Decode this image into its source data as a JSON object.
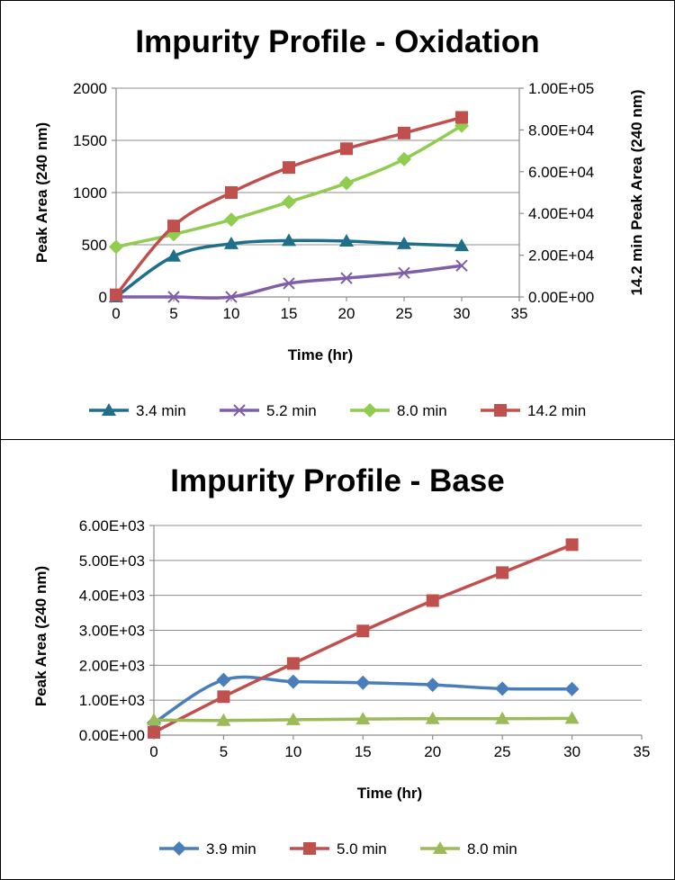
{
  "chart_data": [
    {
      "type": "line",
      "title": "Impurity Profile - Oxidation",
      "xlabel": "Time (hr)",
      "ylabel": "Peak Area (240 nm)",
      "y2label": "14.2 min Peak Area (240 nm)",
      "xlim": [
        0,
        35
      ],
      "ylim": [
        0,
        2000
      ],
      "y2lim": [
        0,
        100000
      ],
      "xticks": [
        "0",
        "5",
        "10",
        "15",
        "20",
        "25",
        "30",
        "35"
      ],
      "yticks": [
        "0",
        "500",
        "1000",
        "1500",
        "2000"
      ],
      "y2ticks": [
        "0.00E+00",
        "2.00E+04",
        "4.00E+04",
        "6.00E+04",
        "8.00E+04",
        "1.00E+05"
      ],
      "grid": true,
      "legend": "bottom",
      "series": [
        {
          "name": "3.4 min",
          "color": "#1f6f8b",
          "marker": "triangle",
          "axis": "left",
          "x": [
            0,
            5,
            10,
            15,
            20,
            25,
            30
          ],
          "y": [
            0,
            390,
            510,
            540,
            535,
            510,
            490
          ]
        },
        {
          "name": "5.2 min",
          "color": "#7f5fa8",
          "marker": "x",
          "axis": "left",
          "x": [
            0,
            5,
            10,
            15,
            20,
            25,
            30
          ],
          "y": [
            0,
            0,
            0,
            130,
            180,
            230,
            300
          ]
        },
        {
          "name": "8.0 min",
          "color": "#8fcc4f",
          "marker": "diamond",
          "axis": "left",
          "x": [
            0,
            5,
            10,
            15,
            20,
            25,
            30
          ],
          "y": [
            480,
            600,
            740,
            910,
            1090,
            1320,
            1640
          ]
        },
        {
          "name": "14.2 min",
          "color": "#c0504d",
          "marker": "square",
          "axis": "right",
          "x": [
            0,
            5,
            10,
            15,
            20,
            25,
            30
          ],
          "y": [
            1000,
            34000,
            50000,
            62000,
            71000,
            78500,
            86000
          ]
        }
      ]
    },
    {
      "type": "line",
      "title": "Impurity Profile - Base",
      "xlabel": "Time (hr)",
      "ylabel": "Peak Area (240 nm)",
      "xlim": [
        0,
        35
      ],
      "ylim": [
        0,
        6000
      ],
      "xticks": [
        "0",
        "5",
        "10",
        "15",
        "20",
        "25",
        "30",
        "35"
      ],
      "yticks": [
        "0.00E+00",
        "1.00E+03",
        "2.00E+03",
        "3.00E+03",
        "4.00E+03",
        "5.00E+03",
        "6.00E+03"
      ],
      "grid": true,
      "legend": "bottom",
      "series": [
        {
          "name": "3.9 min",
          "color": "#4a7ebb",
          "marker": "diamond",
          "x": [
            0,
            5,
            10,
            15,
            20,
            25,
            30
          ],
          "y": [
            350,
            1580,
            1530,
            1500,
            1440,
            1330,
            1320
          ]
        },
        {
          "name": "5.0 min",
          "color": "#c0504d",
          "marker": "square",
          "x": [
            0,
            5,
            10,
            15,
            20,
            25,
            30
          ],
          "y": [
            80,
            1100,
            2050,
            2980,
            3850,
            4650,
            5450
          ]
        },
        {
          "name": "8.0 min",
          "color": "#9bbb59",
          "marker": "triangle",
          "x": [
            0,
            5,
            10,
            15,
            20,
            25,
            30
          ],
          "y": [
            430,
            420,
            440,
            460,
            470,
            470,
            480
          ]
        }
      ]
    }
  ]
}
